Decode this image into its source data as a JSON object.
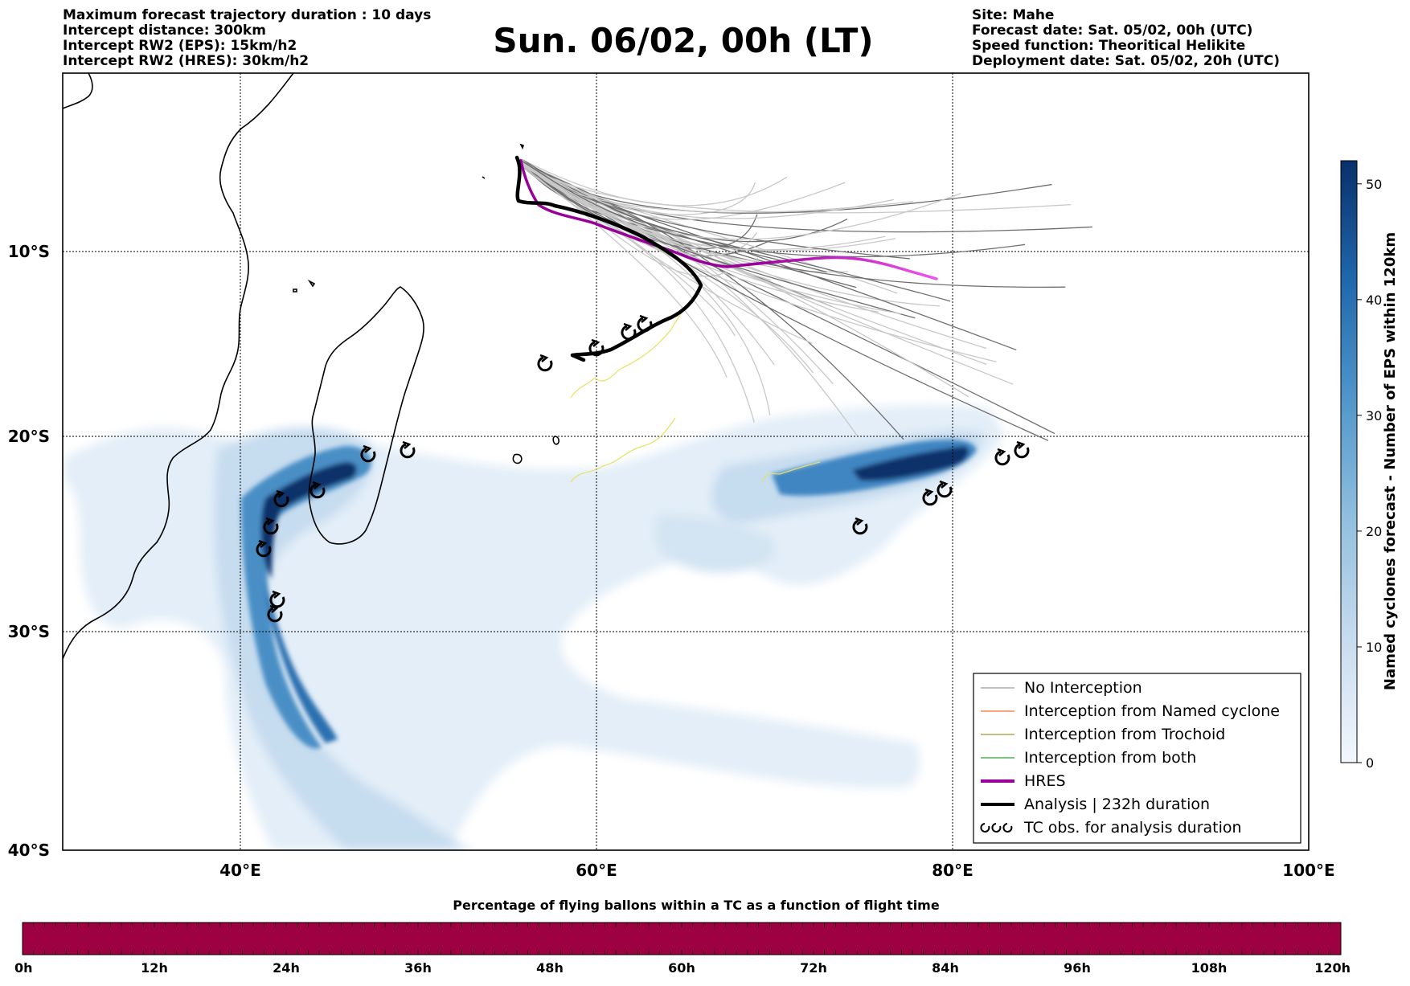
{
  "header": {
    "left_lines": [
      "Maximum forecast trajectory duration : 10 days",
      "Intercept distance: 300km",
      "Intercept RW2 (EPS):  15km/h2",
      "Intercept RW2 (HRES): 30km/h2"
    ],
    "title": "Sun. 06/02, 00h (LT)",
    "right_lines": [
      "Site: Mahe",
      "Forecast date: Sat. 05/02, 00h (UTC)",
      "Speed function: Theoritical Helikite",
      "Deployment date: Sat. 05/02, 20h (UTC)"
    ]
  },
  "map": {
    "lat_labels": [
      "10°S",
      "20°S",
      "30°S",
      "40°S"
    ],
    "lon_labels": [
      "40°E",
      "60°E",
      "80°E",
      "100°E"
    ],
    "legend": [
      {
        "label": "No Interception",
        "color": "#808080",
        "width": 1
      },
      {
        "label": "Interception from Named cyclone",
        "color": "#ff4500",
        "width": 1
      },
      {
        "label": "Interception from Trochoid",
        "color": "#808000",
        "width": 1
      },
      {
        "label": "Interception from both",
        "color": "#008000",
        "width": 1
      },
      {
        "label": "HRES",
        "color": "#990099",
        "width": 4
      },
      {
        "label": "Analysis | 232h duration",
        "color": "#000000",
        "width": 4
      },
      {
        "label": "TC obs. for analysis duration",
        "color": "#000000",
        "width": 0
      }
    ],
    "colors": {
      "hres_start": "#990099",
      "hres_end": "#ee55ee",
      "analysis": "#000000",
      "eps_member": "#6e6e6e",
      "eps_member_late": "#c8c8c8",
      "trochoid": "#e8e060",
      "coast": "#000000"
    }
  },
  "colorbar": {
    "label": "Named cyclones forecast - Number of EPS within 120km",
    "ticks": [
      "0",
      "10",
      "20",
      "30",
      "40",
      "50"
    ],
    "min": 0,
    "max": 52,
    "color_low": "#dde9f5",
    "color_high": "#083b7b"
  },
  "bottom_bar": {
    "title": "Percentage of flying ballons within a TC as a function of flight time",
    "ticks": [
      "0h",
      "12h",
      "24h",
      "36h",
      "48h",
      "60h",
      "72h",
      "84h",
      "96h",
      "108h",
      "120h"
    ],
    "fill_color": "#9e0142"
  }
}
